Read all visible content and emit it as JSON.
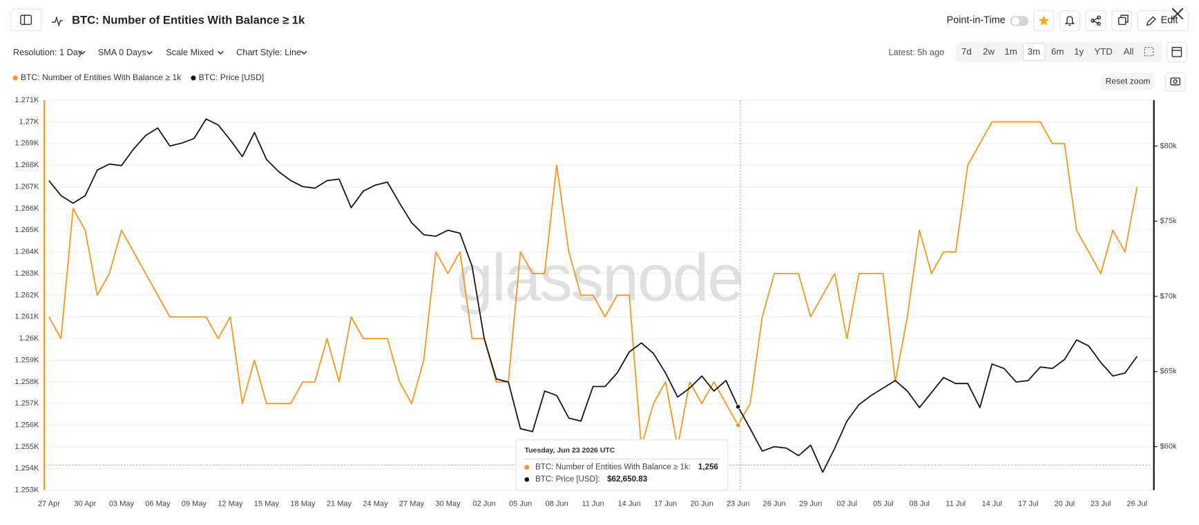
{
  "chart_data": {
    "type": "line",
    "categories": [
      "27 Apr",
      null,
      null,
      "30 Apr",
      null,
      null,
      "03 May",
      null,
      null,
      "06 May",
      null,
      null,
      "09 May",
      null,
      null,
      "12 May",
      null,
      null,
      "15 May",
      null,
      null,
      "18 May",
      null,
      null,
      "21 May",
      null,
      null,
      "24 May",
      null,
      null,
      "27 May",
      null,
      null,
      "30 May",
      null,
      null,
      "02 Jun",
      null,
      null,
      "05 Jun",
      null,
      null,
      "08 Jun",
      null,
      null,
      "11 Jun",
      null,
      null,
      "14 Jun",
      null,
      null,
      "17 Jun",
      null,
      null,
      "20 Jun",
      null,
      null,
      "23 Jun",
      null,
      null,
      "26 Jun",
      null,
      null,
      "29 Jun",
      null,
      null,
      "02 Jul",
      null,
      null,
      "05 Jul",
      null,
      null,
      "08 Jul",
      null,
      null,
      "11 Jul",
      null,
      null,
      "14 Jul",
      null,
      null,
      "17 Jul",
      null,
      null,
      "20 Jul",
      null,
      null,
      "23 Jul",
      null,
      null,
      "26 Jul"
    ],
    "series": [
      {
        "name": "BTC: Number of Entities With Balance ≥ 1k",
        "color": "#f7931a",
        "axis": "y",
        "values": [
          1261,
          1260,
          1266,
          1265,
          1262,
          1263,
          1265,
          1264,
          1263,
          1262,
          1261,
          1261,
          1261,
          1261,
          1260,
          1261,
          1257,
          1259,
          1257,
          1257,
          1257,
          1258,
          1258,
          1260,
          1258,
          1261,
          1260,
          1260,
          1260,
          1258,
          1257,
          1259,
          1264,
          1263,
          1264,
          1260,
          1260,
          1258,
          1258,
          1264,
          1263,
          1263,
          1268,
          1264,
          1262,
          1262,
          1261,
          1262,
          1262,
          1255,
          1257,
          1258,
          1255,
          1258,
          1257,
          1258,
          1257,
          1256,
          1257,
          1261,
          1263,
          1263,
          1263,
          1261,
          1262,
          1263,
          1260,
          1263,
          1263,
          1263,
          1258,
          1261,
          1265,
          1263,
          1264,
          1264,
          1268,
          1269,
          1270,
          1270,
          1270,
          1270,
          1270,
          1269,
          1269,
          1265,
          1264,
          1263,
          1265,
          1264,
          1267
        ]
      },
      {
        "name": "BTC: Price [USD]",
        "color": "#111111",
        "axis": "y2",
        "values": [
          77700,
          76700,
          76200,
          76700,
          78400,
          78800,
          78700,
          79800,
          80700,
          81200,
          80000,
          80200,
          80500,
          81800,
          81400,
          80400,
          79300,
          80900,
          79100,
          78300,
          77700,
          77300,
          77200,
          77700,
          77800,
          75900,
          77000,
          77400,
          77600,
          76200,
          74900,
          74100,
          74000,
          74400,
          74200,
          72000,
          67200,
          64500,
          64300,
          61200,
          61000,
          63700,
          63400,
          61900,
          61700,
          64000,
          64000,
          64900,
          66300,
          66900,
          66200,
          64900,
          63300,
          63900,
          64700,
          63700,
          64400,
          62650.83,
          61200,
          59700,
          60000,
          59900,
          59400,
          60100,
          58300,
          59900,
          61700,
          62800,
          63400,
          63900,
          64400,
          63700,
          62600,
          63600,
          64600,
          64200,
          64200,
          62600,
          65500,
          65200,
          64300,
          64400,
          65300,
          65200,
          65800,
          67100,
          66700,
          65600,
          64700,
          64900,
          66000
        ]
      }
    ],
    "ylim": [
      1253,
      1271
    ],
    "yticks": [
      {
        "value": 1271,
        "label": "1.271K"
      },
      {
        "value": 1270,
        "label": "1.27K"
      },
      {
        "value": 1269,
        "label": "1.269K"
      },
      {
        "value": 1268,
        "label": "1.268K"
      },
      {
        "value": 1267,
        "label": "1.267K"
      },
      {
        "value": 1266,
        "label": "1.266K"
      },
      {
        "value": 1265,
        "label": "1.265K"
      },
      {
        "value": 1264,
        "label": "1.264K"
      },
      {
        "value": 1263,
        "label": "1.263K"
      },
      {
        "value": 1262,
        "label": "1.262K"
      },
      {
        "value": 1261,
        "label": "1.261K"
      },
      {
        "value": 1260,
        "label": "1.26K"
      },
      {
        "value": 1259,
        "label": "1.259K"
      },
      {
        "value": 1258,
        "label": "1.258K"
      },
      {
        "value": 1257,
        "label": "1.257K"
      },
      {
        "value": 1256,
        "label": "1.256K"
      },
      {
        "value": 1255,
        "label": "1.255K"
      },
      {
        "value": 1254,
        "label": "1.254K"
      },
      {
        "value": 1253,
        "label": "1.253K"
      }
    ],
    "y2lim": [
      57100,
      83050
    ],
    "y2ticks": [
      {
        "value": 60000,
        "label": "$60k"
      },
      {
        "value": 65000,
        "label": "$65k"
      },
      {
        "value": 70000,
        "label": "$70k"
      },
      {
        "value": 75000,
        "label": "$75k"
      },
      {
        "value": 80000,
        "label": "$80k"
      }
    ],
    "grid": true
  },
  "ui": {
    "title": "BTC: Number of Entities With Balance ≥ 1k",
    "point_in_time": "Point-in-Time",
    "edit": "Edit",
    "toolbar": [
      "Resolution: 1 Day",
      "SMA 0 Days",
      "Scale Mixed",
      "Chart Style: Line"
    ],
    "latest": "Latest: 5h ago",
    "ranges": [
      "7d",
      "2w",
      "1m",
      "3m",
      "6m",
      "1y",
      "YTD",
      "All"
    ],
    "reset_zoom": "Reset zoom",
    "watermark": "glassnode",
    "tooltip": {
      "date": "Tuesday, Jun 23 2026 UTC",
      "rows": [
        {
          "label": "BTC: Number of Entities With Balance ≥ 1k:",
          "value": "1,256"
        },
        {
          "label": "BTC: Price [USD]:",
          "value": "$62,650.83"
        }
      ]
    }
  }
}
